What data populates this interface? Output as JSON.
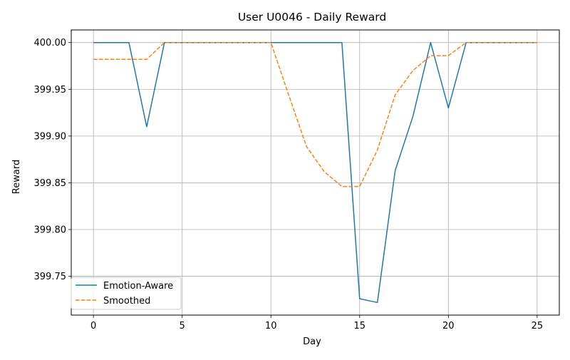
{
  "chart_data": {
    "type": "line",
    "title": "User U0046 - Daily Reward",
    "xlabel": "Day",
    "ylabel": "Reward",
    "xlim": [
      -1.25,
      26.25
    ],
    "ylim": [
      399.7085,
      400.0135
    ],
    "xticks": [
      0,
      5,
      10,
      15,
      20,
      25
    ],
    "xtick_labels": [
      "0",
      "5",
      "10",
      "15",
      "20",
      "25"
    ],
    "yticks": [
      399.75,
      399.8,
      399.85,
      399.9,
      399.95,
      400.0
    ],
    "ytick_labels": [
      "399.75",
      "399.80",
      "399.85",
      "399.90",
      "399.95",
      "400.00"
    ],
    "grid": true,
    "legend_position": "lower-left",
    "x": [
      0,
      1,
      2,
      3,
      4,
      5,
      6,
      7,
      8,
      9,
      10,
      11,
      12,
      13,
      14,
      15,
      16,
      17,
      18,
      19,
      20,
      21,
      22,
      23,
      24,
      25
    ],
    "series": [
      {
        "name": "Emotion-Aware",
        "color": "#1f77b4",
        "style": "solid",
        "values": [
          400.0,
          400.0,
          400.0,
          399.91,
          400.0,
          400.0,
          400.0,
          400.0,
          400.0,
          400.0,
          400.0,
          400.0,
          400.0,
          400.0,
          400.0,
          399.726,
          399.722,
          399.863,
          399.921,
          400.0,
          399.93,
          400.0,
          400.0,
          400.0,
          400.0,
          400.0
        ]
      },
      {
        "name": "Smoothed",
        "color": "#ff7f0e",
        "style": "dashed",
        "values": [
          399.982,
          399.982,
          399.982,
          399.982,
          400.0,
          400.0,
          400.0,
          400.0,
          400.0,
          400.0,
          400.0,
          399.944,
          399.889,
          399.862,
          399.846,
          399.846,
          399.885,
          399.944,
          399.97,
          399.986,
          399.986,
          400.0,
          400.0,
          400.0,
          400.0,
          400.0
        ]
      }
    ]
  }
}
